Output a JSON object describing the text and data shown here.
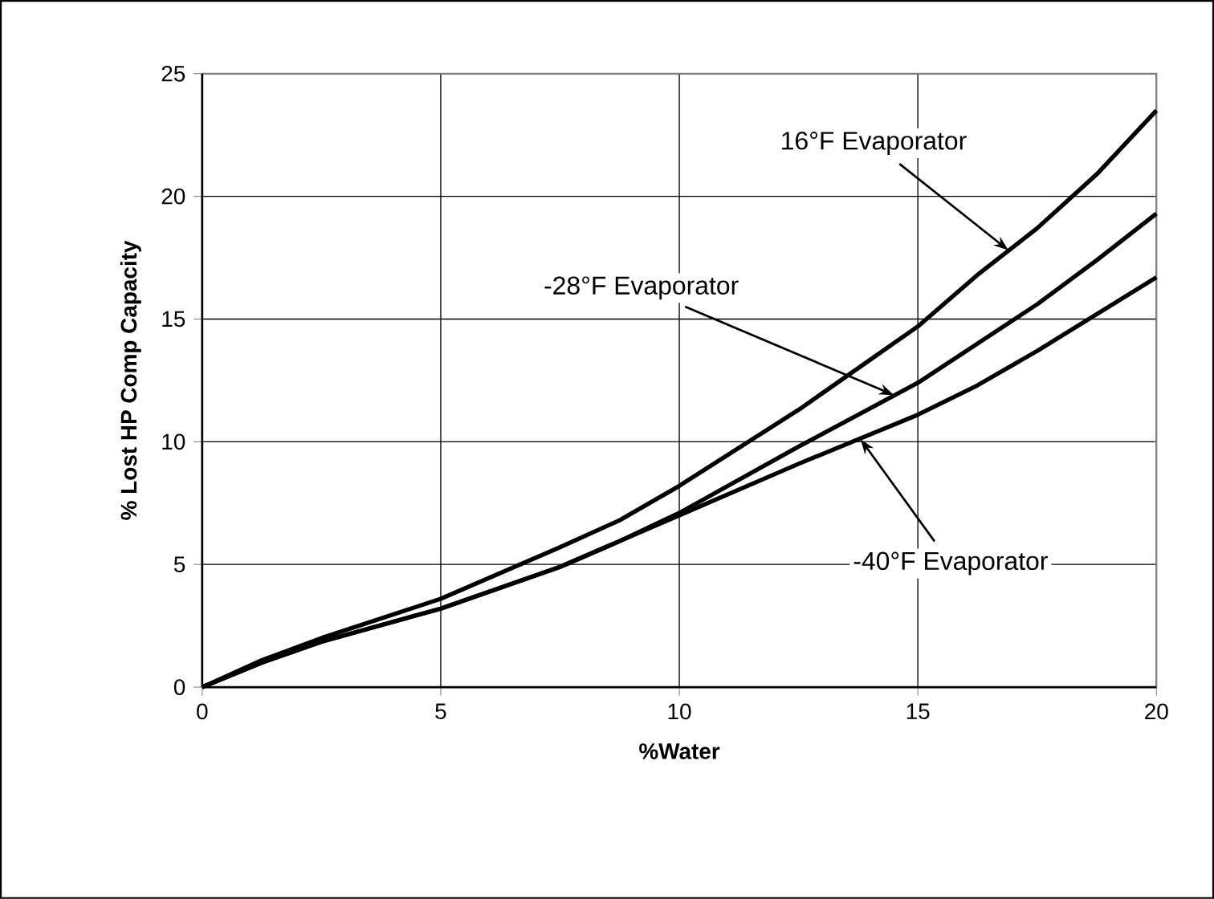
{
  "chart_data": {
    "type": "line",
    "xlabel": "%Water",
    "ylabel": "% Lost HP Comp Capacity",
    "x": [
      0,
      1.25,
      2.5,
      5,
      7.5,
      8.75,
      10,
      12.5,
      15,
      16.25,
      17.5,
      18.75,
      20
    ],
    "series": [
      {
        "color": "#000000",
        "values": [
          0,
          1.1,
          2.0,
          3.6,
          5.7,
          6.8,
          8.2,
          11.3,
          14.7,
          16.8,
          18.7,
          20.9,
          23.5
        ]
      },
      {
        "color": "#000000",
        "values": [
          0,
          1.0,
          1.85,
          3.2,
          4.9,
          5.95,
          7.1,
          9.8,
          12.4,
          14.0,
          15.6,
          17.4,
          19.3
        ]
      },
      {
        "color": "#000000",
        "values": [
          0,
          1.0,
          1.85,
          3.2,
          4.9,
          5.95,
          7.0,
          9.1,
          11.1,
          12.3,
          13.7,
          15.2,
          16.7
        ]
      }
    ],
    "annotations": [
      {
        "text": "16°F Evaporator",
        "x": 16.9,
        "y": 17.8
      },
      {
        "text": "-28°F Evaporator",
        "x": 14.5,
        "y": 11.9
      },
      {
        "text": "-40°F Evaporator",
        "x": 13.8,
        "y": 10.1
      }
    ],
    "xlim": [
      0,
      20
    ],
    "ylim": [
      0,
      25
    ],
    "xticks": [
      0,
      5,
      10,
      15,
      20
    ],
    "yticks": [
      0,
      5,
      10,
      15,
      20,
      25
    ],
    "grid": true,
    "marker": "none",
    "line_style": "solid"
  }
}
